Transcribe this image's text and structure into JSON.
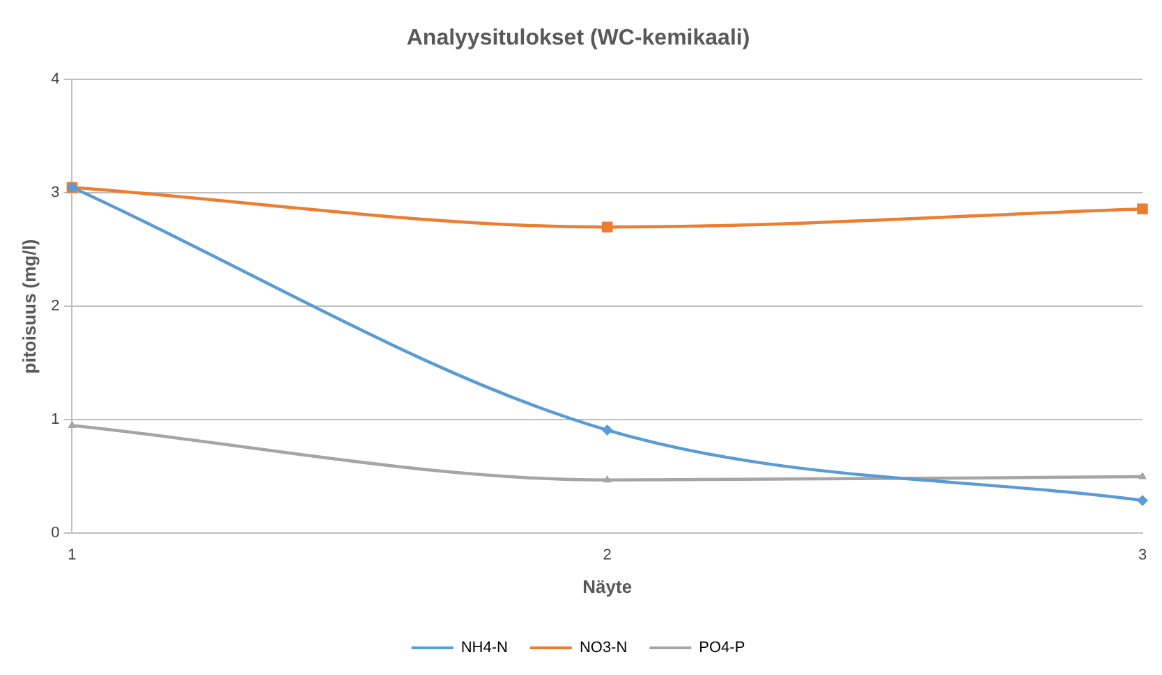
{
  "chart_data": {
    "type": "line",
    "title": "Analyysitulokset (WC-kemikaali)",
    "xlabel": "Näyte",
    "ylabel": "pitoisuus (mg/l)",
    "categories": [
      "1",
      "2",
      "3"
    ],
    "series": [
      {
        "name": "NH4-N",
        "color": "#5b9bd5",
        "marker": "diamond",
        "values": [
          3.05,
          0.91,
          0.29
        ]
      },
      {
        "name": "NO3-N",
        "color": "#ed7d31",
        "marker": "square",
        "values": [
          3.05,
          2.7,
          2.86
        ]
      },
      {
        "name": "PO4-P",
        "color": "#a5a5a5",
        "marker": "triangle",
        "values": [
          0.95,
          0.47,
          0.5
        ]
      }
    ],
    "ylim": [
      0,
      4
    ],
    "yticks": [
      0,
      1,
      2,
      3,
      4
    ],
    "grid": "y",
    "legend": "bottom"
  }
}
